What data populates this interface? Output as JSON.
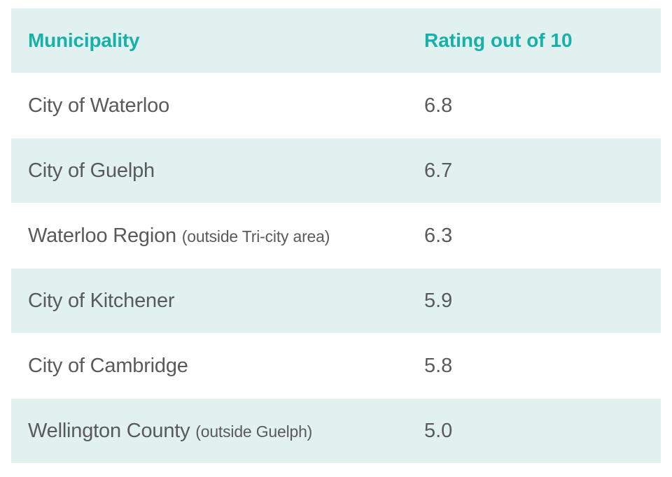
{
  "chart_data": {
    "type": "table",
    "columns": [
      "Municipality",
      "Rating out of 10"
    ],
    "rows": [
      {
        "name": "City of Waterloo",
        "note": "",
        "rating": "6.8"
      },
      {
        "name": "City of Guelph",
        "note": "",
        "rating": "6.7"
      },
      {
        "name": "Waterloo Region",
        "note": "(outside Tri-city area)",
        "rating": "6.3"
      },
      {
        "name": "City of Kitchener",
        "note": "",
        "rating": "5.9"
      },
      {
        "name": "City of Cambridge",
        "note": "",
        "rating": "5.8"
      },
      {
        "name": "Wellington County",
        "note": "(outside Guelph)",
        "rating": "5.0"
      }
    ]
  },
  "colors": {
    "header_text": "#18b0a8",
    "body_text": "#5a5a5a",
    "shaded_row": "#e1f1f0",
    "plain_row": "#ffffff"
  }
}
